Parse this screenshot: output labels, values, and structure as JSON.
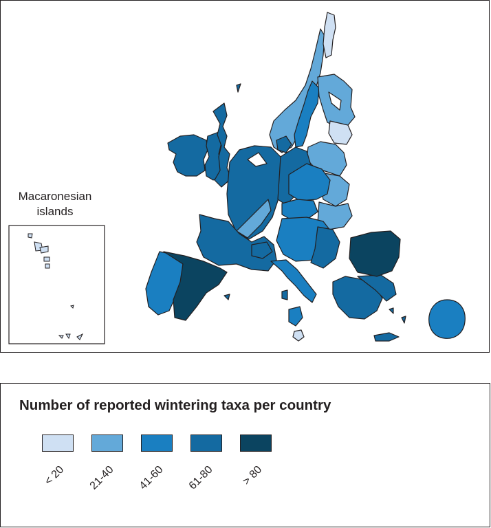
{
  "inset": {
    "title_line1": "Macaronesian",
    "title_line2": "islands"
  },
  "legend": {
    "title": "Number of reported wintering taxa per country",
    "classes": [
      {
        "label": "< 20",
        "color": "#cfe0f3"
      },
      {
        "label": "21-40",
        "color": "#63a9d9"
      },
      {
        "label": "41-60",
        "color": "#1a7fc1"
      },
      {
        "label": "61-80",
        "color": "#146aa1"
      },
      {
        "label": "> 80",
        "color": "#0b4460"
      }
    ]
  }
}
